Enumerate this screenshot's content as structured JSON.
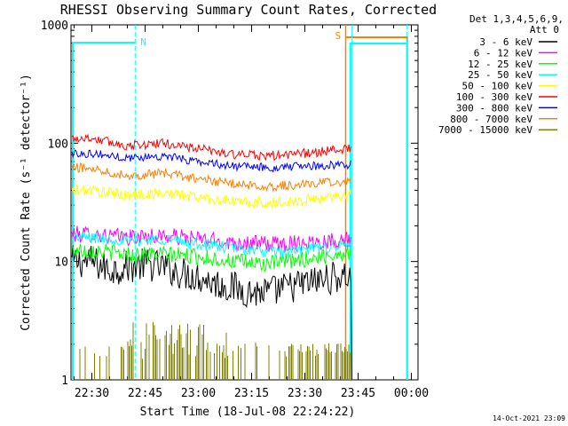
{
  "chart_data": {
    "type": "line",
    "title": "RHESSI Observing Summary Count Rates, Corrected",
    "xlabel": "Start Time (18-Jul-08 22:24:22)",
    "ylabel": "Corrected Count Rate (s⁻¹ detector⁻¹)",
    "x_ticks": [
      "22:30",
      "22:45",
      "23:00",
      "23:15",
      "23:30",
      "23:45",
      "00:00"
    ],
    "y_scale": "log",
    "ylim": [
      1,
      1000
    ],
    "y_ticks": [
      "1",
      "10",
      "100",
      "1000"
    ],
    "legend_title": [
      "Det 1,3,4,5,6,9,",
      "Att 0"
    ],
    "legend_position": "right",
    "series": [
      {
        "name": "3 - 6 keV",
        "color": "#000000",
        "t_min": [
          0,
          5,
          10,
          15,
          20,
          25,
          30,
          35,
          40,
          45,
          50,
          55,
          60,
          65,
          70,
          73
        ],
        "values": [
          10,
          8.5,
          9,
          9.5,
          9,
          8,
          7.5,
          6.5,
          6,
          5.5,
          5.5,
          6,
          6.5,
          7,
          7.5,
          7.5
        ]
      },
      {
        "name": "6 - 12 keV",
        "color": "#ff00ff",
        "t_min": [
          0,
          10,
          20,
          30,
          40,
          50,
          60,
          73
        ],
        "values": [
          17,
          16,
          16.5,
          15.5,
          14.5,
          14,
          14.5,
          15.5
        ]
      },
      {
        "name": "12 - 25 keV",
        "color": "#00ff00",
        "t_min": [
          0,
          10,
          20,
          30,
          40,
          50,
          60,
          73
        ],
        "values": [
          12.5,
          11.5,
          11.5,
          11,
          10,
          9.5,
          10.5,
          12
        ]
      },
      {
        "name": "25 - 50 keV",
        "color": "#00ffff",
        "t_min": [
          0,
          10,
          20,
          30,
          40,
          50,
          60,
          73
        ],
        "values": [
          16,
          15,
          15.5,
          14,
          13,
          12,
          12.5,
          14
        ]
      },
      {
        "name": "50 - 100 keV",
        "color": "#ffff00",
        "t_min": [
          0,
          10,
          20,
          30,
          40,
          50,
          60,
          73
        ],
        "values": [
          40,
          36,
          38,
          35,
          32,
          31,
          33,
          37
        ]
      },
      {
        "name": "100 - 300 keV",
        "color": "#ff0000",
        "t_min": [
          0,
          10,
          20,
          30,
          40,
          50,
          60,
          73
        ],
        "values": [
          110,
          95,
          100,
          90,
          80,
          78,
          82,
          90
        ]
      },
      {
        "name": "300 - 800 keV",
        "color": "#0000ff",
        "t_min": [
          0,
          10,
          20,
          30,
          40,
          50,
          60,
          73
        ],
        "values": [
          82,
          75,
          78,
          70,
          64,
          62,
          64,
          66
        ]
      },
      {
        "name": "800 - 7000 keV",
        "color": "#ff8000",
        "t_min": [
          0,
          10,
          20,
          30,
          40,
          50,
          60,
          73
        ],
        "values": [
          62,
          53,
          56,
          50,
          45,
          43,
          45,
          48
        ]
      },
      {
        "name": "7000 - 15000 keV",
        "color": "#808000",
        "t_min": [
          0,
          73
        ],
        "values": [
          2,
          2
        ]
      }
    ],
    "annotations": [
      {
        "text": "N",
        "color": "#00ffff"
      },
      {
        "text": "S",
        "color": "#ff8000"
      }
    ]
  },
  "footer": {
    "timestamp": "14-Oct-2021 23:09"
  }
}
